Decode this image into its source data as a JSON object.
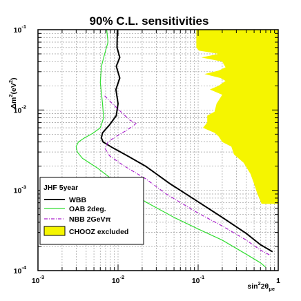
{
  "chart_data": {
    "type": "line",
    "title": "90% C.L. sensitivities",
    "xlabel": "sin²2θμe",
    "xlabel_parts": {
      "base": "sin",
      "sup": "2",
      "mid": "2θ",
      "sub": "μe"
    },
    "ylabel_parts": {
      "pre": "Δm",
      "sup1": "2",
      "mid": "(eV",
      "sup2": "2",
      "post": ")"
    },
    "x_scale": "log",
    "y_scale": "log",
    "xlim": [
      0.001,
      1
    ],
    "ylim": [
      0.0001,
      0.1
    ],
    "grid": true,
    "x_ticks": [
      {
        "value": 0.001,
        "base": "10",
        "exp": "-3"
      },
      {
        "value": 0.01,
        "base": "10",
        "exp": "-2"
      },
      {
        "value": 0.1,
        "base": "10",
        "exp": "-1"
      },
      {
        "value": 1,
        "base": "1",
        "exp": ""
      }
    ],
    "y_ticks": [
      {
        "value": 0.0001,
        "base": "10",
        "exp": "-4"
      },
      {
        "value": 0.001,
        "base": "10",
        "exp": "-3"
      },
      {
        "value": 0.01,
        "base": "10",
        "exp": "-2"
      },
      {
        "value": 0.1,
        "base": "10",
        "exp": "-1"
      }
    ],
    "legend": {
      "placement": "bottom-left",
      "header": "JHF 5year",
      "entries": [
        {
          "label": "WBB",
          "series": "WBB"
        },
        {
          "label": "OAB 2deg.",
          "series": "OAB"
        },
        {
          "label": "NBB 2GeVπ",
          "series": "NBB"
        },
        {
          "label": "CHOOZ excluded",
          "series": "CHOOZ"
        }
      ]
    },
    "series": [
      {
        "key": "WBB",
        "color": "#000000",
        "style": "solid",
        "points": [
          [
            0.0098,
            0.1
          ],
          [
            0.0097,
            0.06
          ],
          [
            0.0105,
            0.045
          ],
          [
            0.0095,
            0.035
          ],
          [
            0.0105,
            0.025
          ],
          [
            0.0094,
            0.018
          ],
          [
            0.01,
            0.012
          ],
          [
            0.0095,
            0.0085
          ],
          [
            0.0078,
            0.0065
          ],
          [
            0.0064,
            0.0052
          ],
          [
            0.0062,
            0.0045
          ],
          [
            0.0065,
            0.004
          ],
          [
            0.0085,
            0.0034
          ],
          [
            0.013,
            0.0027
          ],
          [
            0.022,
            0.002
          ],
          [
            0.045,
            0.0012
          ],
          [
            0.1,
            0.00072
          ],
          [
            0.2,
            0.00046
          ],
          [
            0.4,
            0.00029
          ],
          [
            0.6,
            0.00021
          ],
          [
            0.85,
            0.000172
          ]
        ]
      },
      {
        "key": "OAB",
        "color": "#33dd33",
        "style": "solid",
        "points": [
          [
            0.0072,
            0.1
          ],
          [
            0.0075,
            0.07
          ],
          [
            0.0068,
            0.05
          ],
          [
            0.0062,
            0.035
          ],
          [
            0.006,
            0.022
          ],
          [
            0.0064,
            0.012
          ],
          [
            0.0066,
            0.008
          ],
          [
            0.006,
            0.006
          ],
          [
            0.0048,
            0.0051
          ],
          [
            0.0038,
            0.0045
          ],
          [
            0.0032,
            0.004
          ],
          [
            0.003,
            0.0035
          ],
          [
            0.0031,
            0.003
          ],
          [
            0.0036,
            0.0025
          ],
          [
            0.0055,
            0.0019
          ],
          [
            0.01,
            0.0012
          ],
          [
            0.022,
            0.00072
          ],
          [
            0.05,
            0.00046
          ],
          [
            0.1,
            0.00033
          ],
          [
            0.2,
            0.00024
          ],
          [
            0.4,
            0.00016
          ],
          [
            0.6,
            0.000125
          ],
          [
            0.7,
            0.00011
          ]
        ]
      },
      {
        "key": "NBB",
        "color": "#aa22cc",
        "style": "dashdot",
        "points": [
          [
            0.0068,
            0.015
          ],
          [
            0.0085,
            0.012
          ],
          [
            0.0115,
            0.009
          ],
          [
            0.014,
            0.0075
          ],
          [
            0.0168,
            0.0068
          ],
          [
            0.015,
            0.0062
          ],
          [
            0.0125,
            0.0055
          ],
          [
            0.0095,
            0.0047
          ],
          [
            0.0075,
            0.004
          ],
          [
            0.0069,
            0.0033
          ],
          [
            0.0078,
            0.0027
          ],
          [
            0.012,
            0.002
          ],
          [
            0.022,
            0.0014
          ],
          [
            0.04,
            0.0009
          ],
          [
            0.1,
            0.00052
          ],
          [
            0.2,
            0.00036
          ],
          [
            0.4,
            0.00024
          ],
          [
            0.6,
            0.00018
          ],
          [
            0.8,
            0.000155
          ]
        ]
      },
      {
        "key": "CHOOZ",
        "color": "#f5f500",
        "style": "filled",
        "boundary": [
          [
            0.095,
            0.1
          ],
          [
            0.095,
            0.06
          ],
          [
            0.102,
            0.055
          ],
          [
            0.18,
            0.05
          ],
          [
            0.11,
            0.045
          ],
          [
            0.2,
            0.04
          ],
          [
            0.22,
            0.034
          ],
          [
            0.18,
            0.031
          ],
          [
            0.12,
            0.028
          ],
          [
            0.19,
            0.025
          ],
          [
            0.22,
            0.023
          ],
          [
            0.18,
            0.02
          ],
          [
            0.14,
            0.018
          ],
          [
            0.2,
            0.0155
          ],
          [
            0.17,
            0.012
          ],
          [
            0.16,
            0.0095
          ],
          [
            0.13,
            0.0085
          ],
          [
            0.13,
            0.007
          ],
          [
            0.115,
            0.006
          ],
          [
            0.16,
            0.0052
          ],
          [
            0.18,
            0.0047
          ],
          [
            0.2,
            0.004
          ],
          [
            0.26,
            0.0035
          ],
          [
            0.28,
            0.0028
          ],
          [
            0.37,
            0.0022
          ],
          [
            0.45,
            0.0016
          ],
          [
            0.5,
            0.0012
          ],
          [
            0.55,
            0.0009
          ],
          [
            0.62,
            0.00068
          ],
          [
            1,
            0.00068
          ],
          [
            1,
            0.1
          ]
        ]
      }
    ]
  }
}
